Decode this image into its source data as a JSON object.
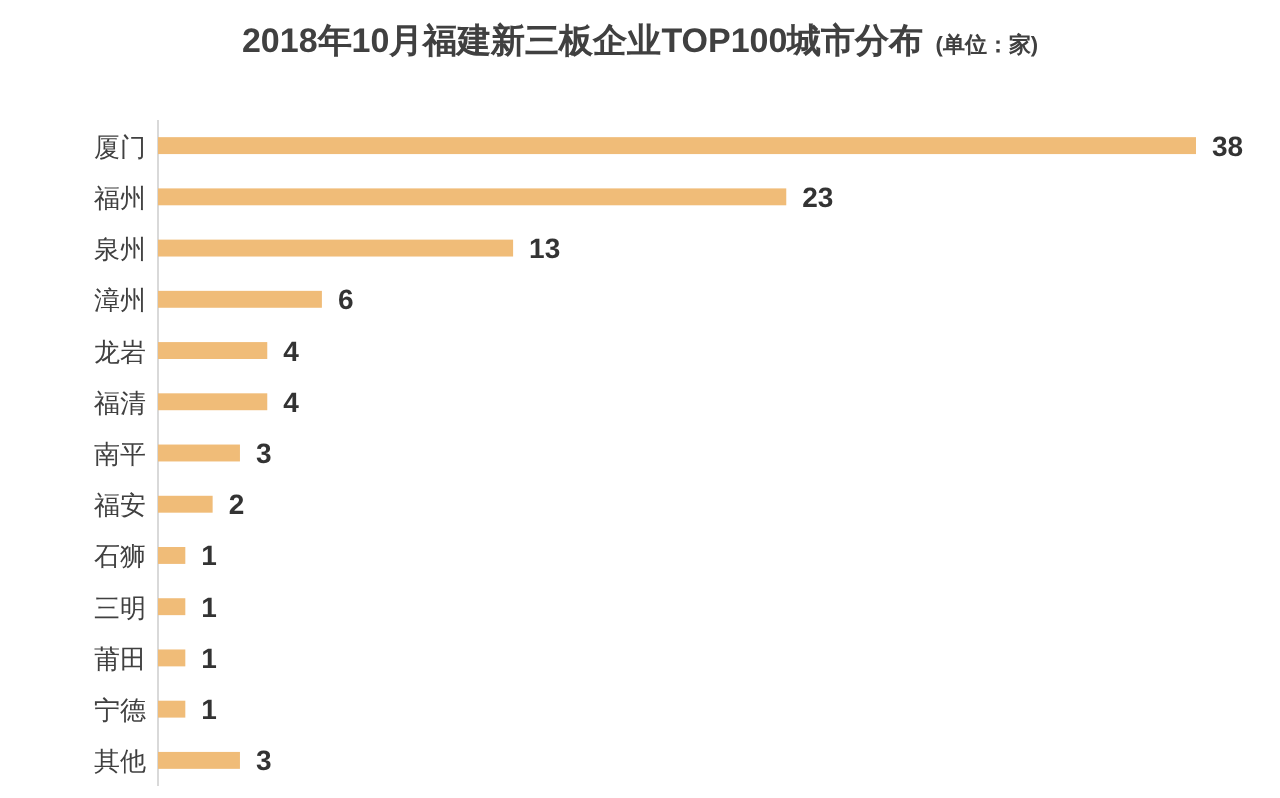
{
  "chart_data": {
    "type": "bar",
    "orientation": "horizontal",
    "title": "2018年10月福建新三板企业TOP100城市分布",
    "subtitle": "(单位：家)",
    "categories": [
      "厦门",
      "福州",
      "泉州",
      "漳州",
      "龙岩",
      "福清",
      "南平",
      "福安",
      "石狮",
      "三明",
      "莆田",
      "宁德",
      "其他"
    ],
    "values": [
      38,
      23,
      13,
      6,
      4,
      4,
      3,
      2,
      1,
      1,
      1,
      1,
      3
    ],
    "color": "#f0bc78",
    "data_labels": true
  }
}
